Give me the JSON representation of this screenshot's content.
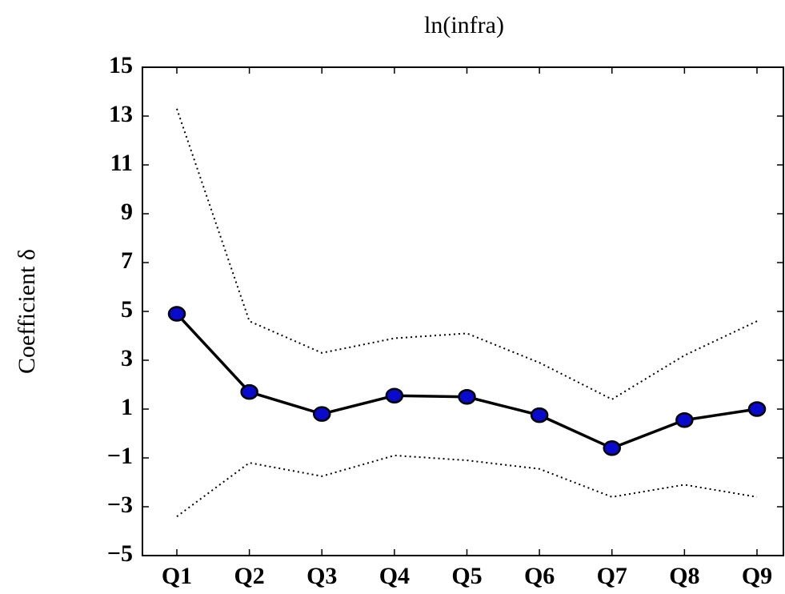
{
  "chart_data": {
    "type": "line",
    "title": "ln(infra)",
    "y_label": "Coefficient δ",
    "categories": [
      "Q1",
      "Q2",
      "Q3",
      "Q4",
      "Q5",
      "Q6",
      "Q7",
      "Q8",
      "Q9"
    ],
    "series": [
      {
        "color": "#000000",
        "style": "dotted",
        "marker": false,
        "values": [
          13.3,
          4.6,
          3.3,
          3.9,
          4.1,
          2.9,
          1.4,
          3.2,
          4.6
        ]
      },
      {
        "color": "#000000",
        "style": "solid",
        "marker": true,
        "marker_color": "#0a0acc",
        "values": [
          4.9,
          1.7,
          0.8,
          1.55,
          1.5,
          0.75,
          -0.6,
          0.55,
          1.0
        ]
      },
      {
        "color": "#000000",
        "style": "dotted",
        "marker": false,
        "values": [
          -3.4,
          -1.2,
          -1.75,
          -0.9,
          -1.1,
          -1.45,
          -2.6,
          -2.1,
          -2.6
        ]
      }
    ],
    "ylim": [
      -5,
      15
    ],
    "yticks": [
      {
        "value": -5,
        "label": "−5"
      },
      {
        "value": -3,
        "label": "−3"
      },
      {
        "value": -1,
        "label": "−1"
      },
      1,
      3,
      5,
      7,
      9,
      11,
      13,
      15
    ],
    "grid": false
  }
}
